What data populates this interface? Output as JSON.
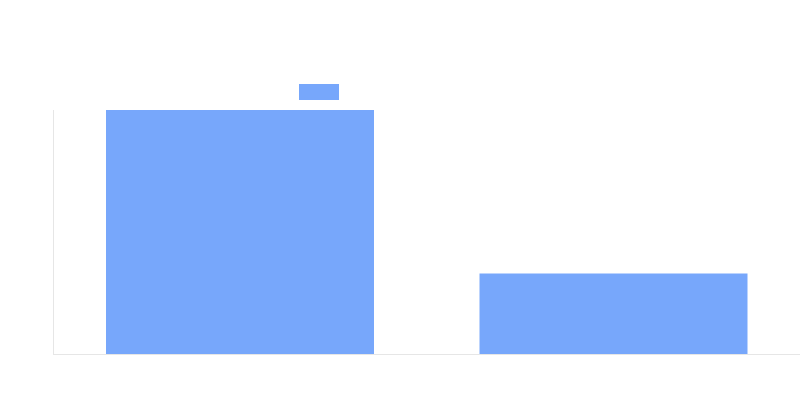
{
  "chart_data": {
    "type": "bar",
    "title": "",
    "xlabel": "",
    "ylabel": "",
    "categories": [
      "",
      ""
    ],
    "series": [
      {
        "values": [
          100,
          33
        ],
        "color": "#77a7fb"
      }
    ],
    "ylim": [
      0,
      100
    ],
    "grid": false,
    "legend": {
      "position": "top-center",
      "show_swatch": true
    }
  }
}
